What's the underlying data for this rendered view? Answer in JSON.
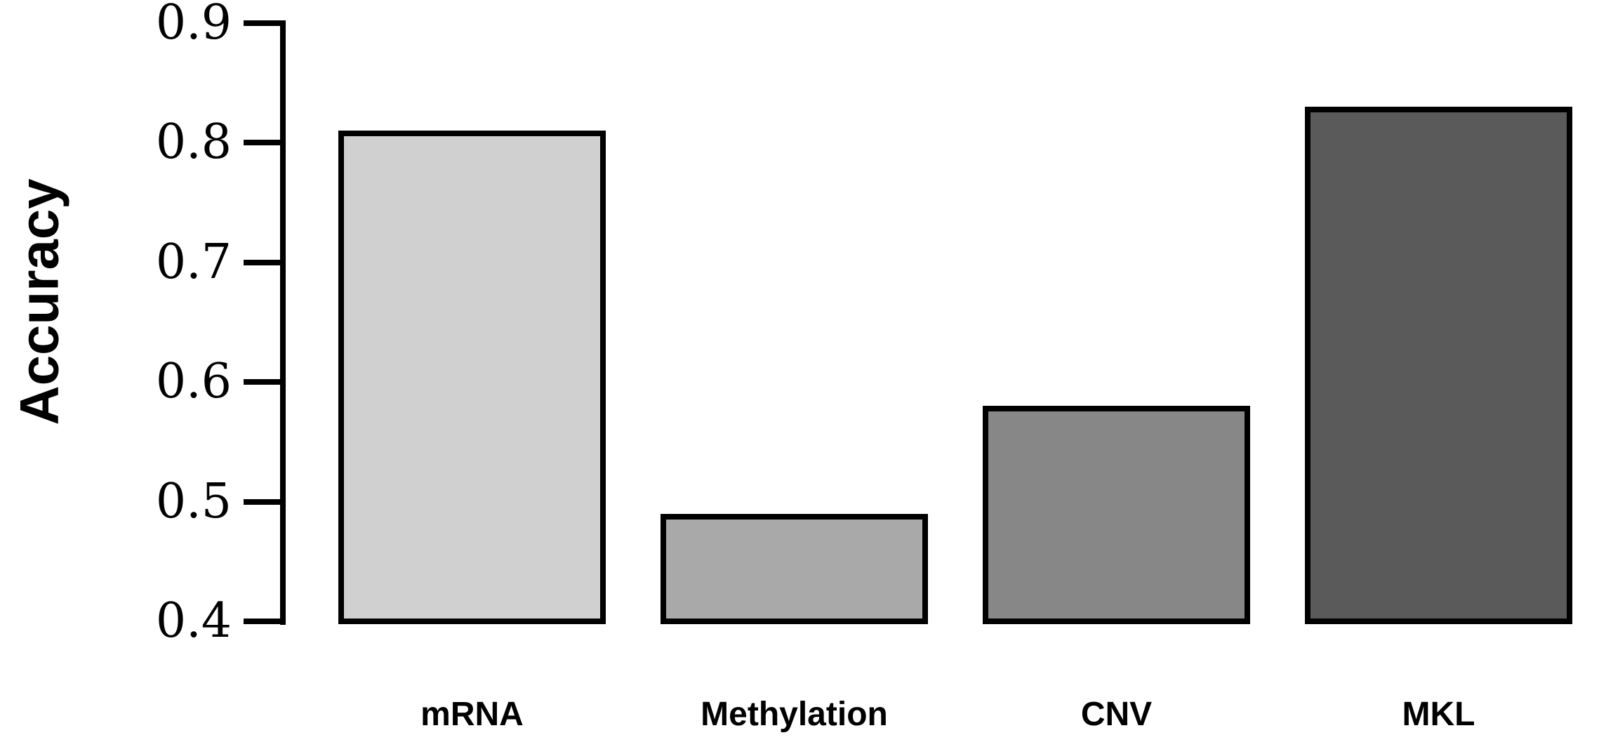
{
  "figure": {
    "background": "#ffffff"
  },
  "chart_data": {
    "type": "bar",
    "categories": [
      "mRNA",
      "Methylation",
      "CNV",
      "MKL"
    ],
    "values": [
      0.81,
      0.49,
      0.58,
      0.83
    ],
    "title": "",
    "xlabel": "",
    "ylabel": "Accuracy",
    "ylim": [
      0.4,
      0.9
    ],
    "yticks": [
      0.4,
      0.5,
      0.6,
      0.7,
      0.8,
      0.9
    ],
    "ytick_labels": [
      "0.4",
      "0.5",
      "0.6",
      "0.7",
      "0.8",
      "0.9"
    ],
    "grid": false,
    "legend": false,
    "bar_fill_colors": [
      "#d0d0d0",
      "#a9a9a9",
      "#878787",
      "#5a5a5a"
    ],
    "bar_border_color": "#000000",
    "axis_color": "#000000",
    "text_color": "#000000"
  }
}
